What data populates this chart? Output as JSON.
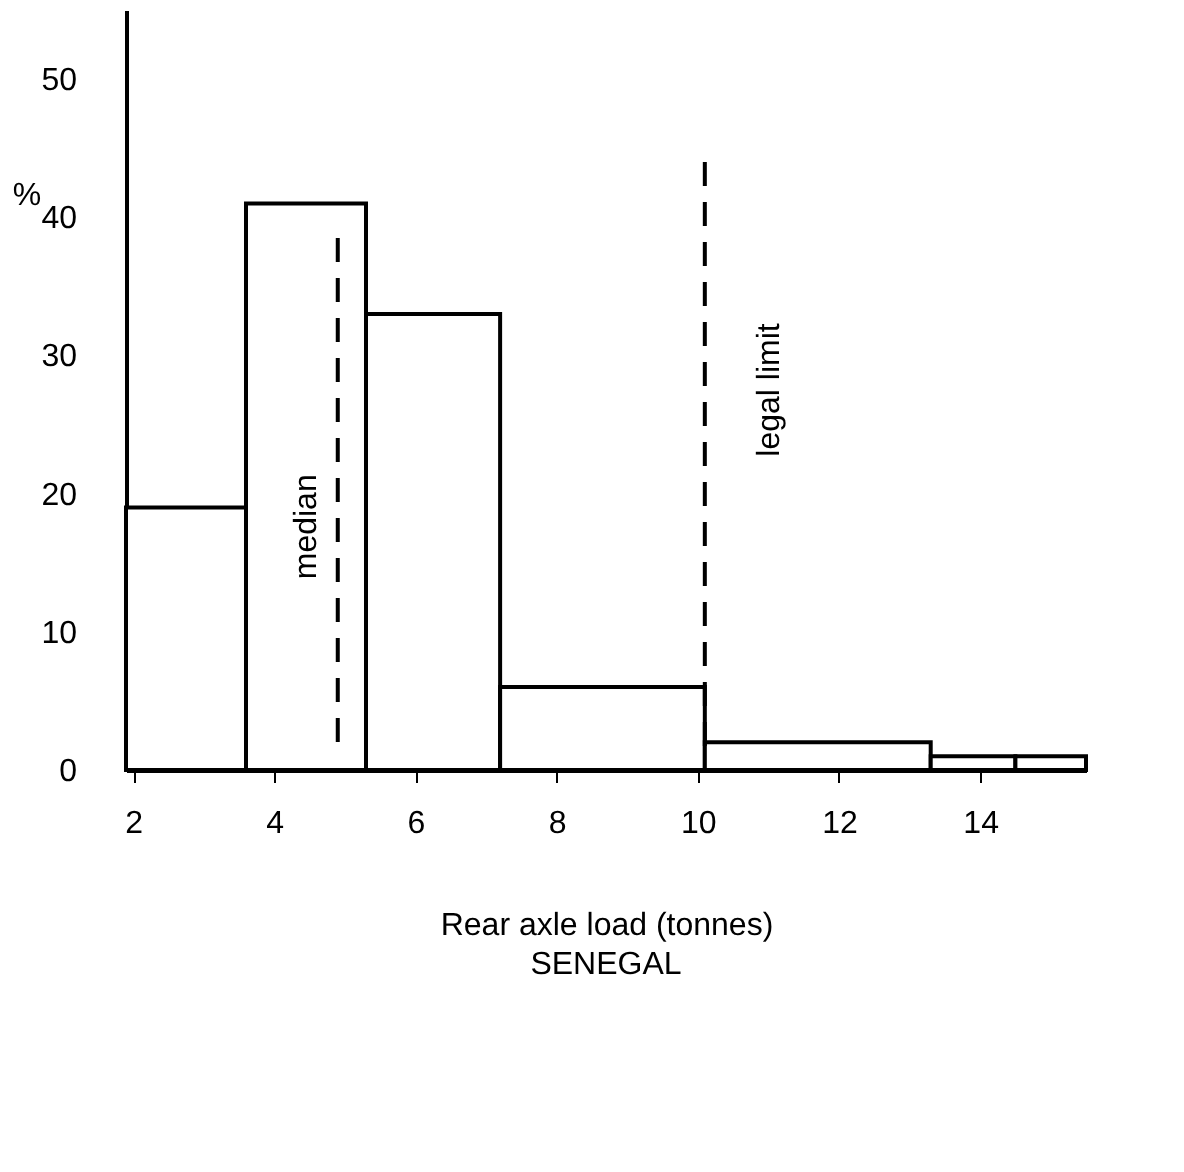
{
  "chart_data": {
    "type": "histogram",
    "title": "SENEGAL",
    "xlabel": "Rear axle load (tonnes)",
    "ylabel": "%",
    "bins": [
      1.9,
      3.6,
      5.3,
      7.2,
      10.1,
      13.3,
      14.5,
      15.5
    ],
    "values": [
      19,
      41,
      33,
      6,
      2,
      1,
      1
    ],
    "color": "#000000",
    "xlim": [
      1.9,
      15.5
    ],
    "xticks": [
      2,
      4,
      6,
      8,
      10,
      12,
      14
    ],
    "ylim": [
      0,
      55
    ],
    "yticks": [
      0,
      10,
      20,
      30,
      40,
      50
    ],
    "ref_lines": [
      {
        "axis": "x",
        "value": 4.9,
        "label": "median",
        "line_style": "dashed"
      },
      {
        "axis": "x",
        "value": 10.1,
        "label": "legal limit",
        "line_style": "dashed"
      }
    ],
    "grid": false
  }
}
